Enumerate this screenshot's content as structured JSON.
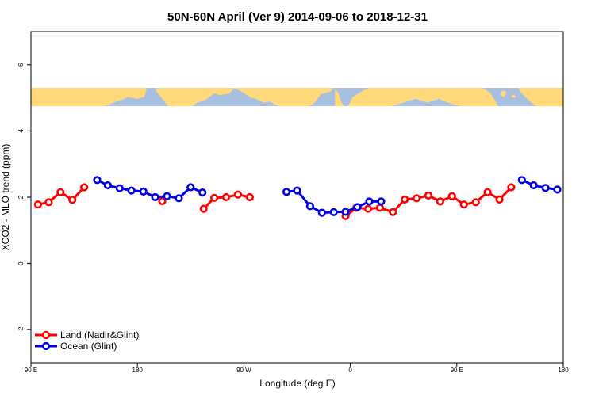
{
  "chart_data": {
    "type": "line",
    "title": "50N-60N April (Ver 9)   2014-09-06 to 2018-12-31",
    "xlabel": "Longitude (deg E)",
    "ylabel": "XCO2 - MLO trend (ppm)",
    "xlim": [
      90,
      540
    ],
    "ylim": [
      -3,
      7
    ],
    "x_ticks": [
      {
        "value": 90,
        "label": "90 E"
      },
      {
        "value": 180,
        "label": "180"
      },
      {
        "value": 270,
        "label": "90 W"
      },
      {
        "value": 360,
        "label": "0"
      },
      {
        "value": 450,
        "label": "90 E"
      },
      {
        "value": 540,
        "label": "180"
      }
    ],
    "y_ticks": [
      {
        "value": -2,
        "label": "-2"
      },
      {
        "value": 0,
        "label": "0"
      },
      {
        "value": 2,
        "label": "2"
      },
      {
        "value": 4,
        "label": "4"
      },
      {
        "value": 6,
        "label": "6"
      }
    ],
    "map_strip": {
      "y_range": [
        4.75,
        5.3
      ],
      "ocean_color": "#a8bfe0",
      "land_color": "#ffd97a"
    },
    "legend_position": "bottom-left",
    "series": [
      {
        "name": "Land (Nadir&Glint)",
        "color": "#ff0000",
        "segments": [
          [
            [
              96,
              1.78
            ],
            [
              105,
              1.85
            ],
            [
              115,
              2.15
            ],
            [
              125,
              1.92
            ],
            [
              135,
              2.3
            ]
          ],
          [
            [
              201,
              1.88
            ]
          ],
          [
            [
              236,
              1.65
            ],
            [
              245,
              1.98
            ],
            [
              255,
              2.0
            ],
            [
              265,
              2.08
            ],
            [
              275,
              2.0
            ]
          ],
          [
            [
              356,
              1.43
            ],
            [
              365,
              1.68
            ],
            [
              375,
              1.65
            ],
            [
              385,
              1.68
            ],
            [
              396,
              1.55
            ],
            [
              406,
              1.93
            ],
            [
              416,
              1.97
            ],
            [
              426,
              2.05
            ],
            [
              436,
              1.87
            ],
            [
              446,
              2.03
            ],
            [
              456,
              1.78
            ],
            [
              466,
              1.85
            ],
            [
              476,
              2.15
            ],
            [
              486,
              1.93
            ],
            [
              496,
              2.3
            ]
          ]
        ]
      },
      {
        "name": "Ocean (Glint)",
        "color": "#0000e6",
        "segments": [
          [
            [
              146,
              2.52
            ],
            [
              155,
              2.36
            ],
            [
              165,
              2.27
            ],
            [
              175,
              2.2
            ],
            [
              185,
              2.17
            ],
            [
              195,
              2.0
            ],
            [
              205,
              2.03
            ],
            [
              215,
              1.97
            ],
            [
              225,
              2.3
            ],
            [
              235,
              2.14
            ]
          ],
          [
            [
              306,
              2.16
            ],
            [
              315,
              2.2
            ],
            [
              326,
              1.73
            ],
            [
              336,
              1.53
            ],
            [
              346,
              1.55
            ],
            [
              356,
              1.56
            ],
            [
              366,
              1.7
            ],
            [
              376,
              1.87
            ],
            [
              386,
              1.87
            ]
          ],
          [
            [
              505,
              2.52
            ],
            [
              515,
              2.36
            ],
            [
              525,
              2.28
            ],
            [
              535,
              2.23
            ]
          ]
        ]
      }
    ]
  }
}
